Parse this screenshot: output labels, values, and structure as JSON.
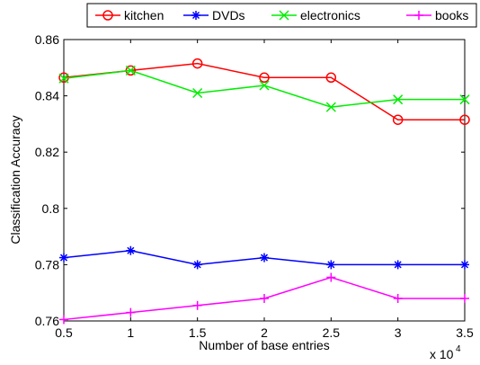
{
  "chart_data": {
    "type": "line",
    "title": "",
    "xlabel": "Number of base entries",
    "ylabel": "Classification Accuracy",
    "x_multiplier": "x 10",
    "x_multiplier_exp": "4",
    "x": [
      0.5,
      1,
      1.5,
      2,
      2.5,
      3,
      3.5
    ],
    "xlim": [
      0.5,
      3.5
    ],
    "ylim": [
      0.76,
      0.86
    ],
    "xticks": [
      "0.5",
      "1",
      "1.5",
      "2",
      "2.5",
      "3",
      "3.5"
    ],
    "yticks": [
      "0.76",
      "0.78",
      "0.8",
      "0.82",
      "0.84",
      "0.86"
    ],
    "grid": false,
    "legend_position": "top",
    "series": [
      {
        "name": "kitchen",
        "color": "#ff0000",
        "marker": "circle",
        "values": [
          0.8465,
          0.849,
          0.8515,
          0.8465,
          0.8465,
          0.8315,
          0.8315
        ]
      },
      {
        "name": "DVDs",
        "color": "#0000ff",
        "marker": "asterisk",
        "values": [
          0.7825,
          0.785,
          0.78,
          0.7825,
          0.78,
          0.78,
          0.78
        ]
      },
      {
        "name": "electronics",
        "color": "#00ee00",
        "marker": "x",
        "values": [
          0.8462,
          0.849,
          0.841,
          0.8437,
          0.836,
          0.8387,
          0.8387
        ]
      },
      {
        "name": "books",
        "color": "#ff00ff",
        "marker": "plus",
        "values": [
          0.7605,
          0.763,
          0.7655,
          0.768,
          0.7755,
          0.768,
          0.768
        ]
      }
    ]
  }
}
